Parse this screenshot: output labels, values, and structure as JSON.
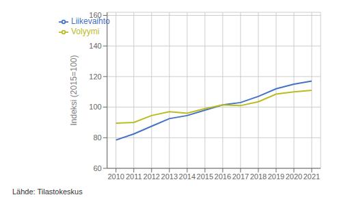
{
  "chart_data": {
    "type": "line",
    "y_label": "Indeksi (2015=100)",
    "annotations": [
      "Lähde: Tilastokeskus"
    ],
    "x": [
      2010,
      2011,
      2012,
      2013,
      2014,
      2015,
      2016,
      2017,
      2018,
      2019,
      2020,
      2021
    ],
    "series": [
      {
        "name": "Liikevaihto",
        "color": "#4472C4",
        "values": [
          78.5,
          82.5,
          87.5,
          92.5,
          94.5,
          98.0,
          101.5,
          103.0,
          107.0,
          112.0,
          115.0,
          117.0
        ]
      },
      {
        "name": "Volyymi",
        "color": "#BBBB22",
        "values": [
          89.5,
          90.0,
          94.5,
          97.0,
          96.0,
          99.0,
          101.5,
          101.0,
          103.5,
          108.5,
          110.0,
          111.0
        ]
      }
    ],
    "xlim": [
      2009.5,
      2021.5
    ],
    "xticks": [
      2010,
      2011,
      2012,
      2013,
      2014,
      2015,
      2016,
      2017,
      2018,
      2019,
      2020,
      2021
    ],
    "ylim": [
      60,
      162
    ],
    "yticks": [
      60,
      80,
      100,
      120,
      140,
      160
    ],
    "grid": true,
    "legend": "upper left"
  }
}
